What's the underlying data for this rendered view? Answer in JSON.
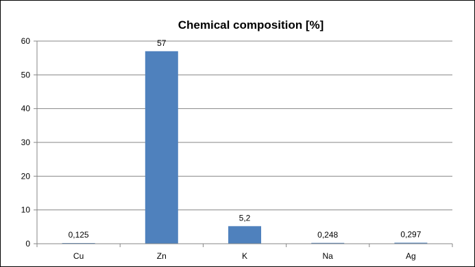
{
  "chart_data": {
    "type": "bar",
    "title": "Chemical composition [%]",
    "categories": [
      "Cu",
      "Zn",
      "K",
      "Na",
      "Ag"
    ],
    "values": [
      0.125,
      57,
      5.2,
      0.248,
      0.297
    ],
    "data_labels": [
      "0,125",
      "57",
      "5,2",
      "0,248",
      "0,297"
    ],
    "ylim": [
      0,
      60
    ],
    "yticks": [
      0,
      10,
      20,
      30,
      40,
      50,
      60
    ],
    "xlabel": "",
    "ylabel": "",
    "grid": true,
    "legend": "none",
    "bar_color": "#4f81bd"
  }
}
